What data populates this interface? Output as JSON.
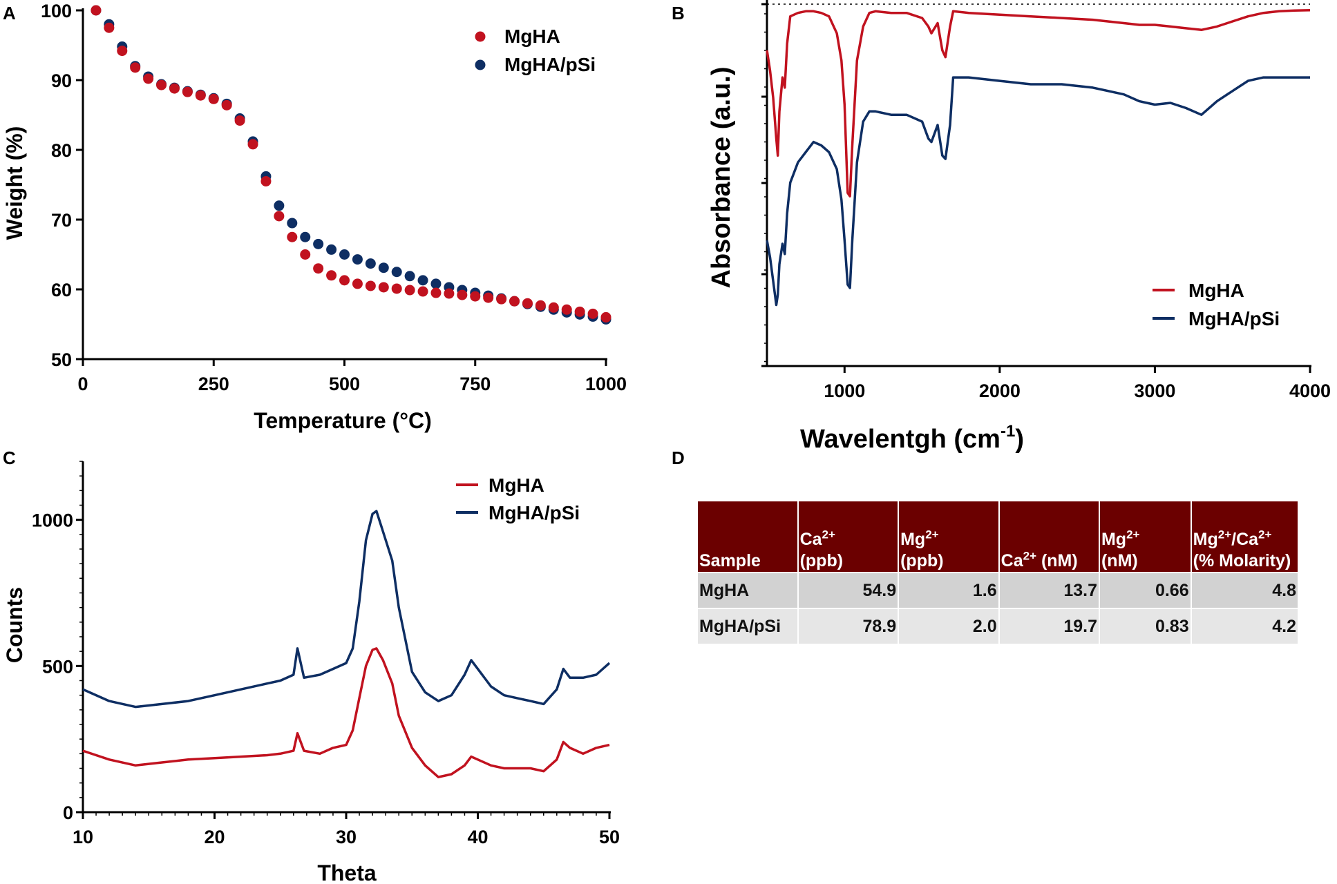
{
  "colors": {
    "mgha": "#c1121f",
    "mgha_psi": "#0e2e63",
    "axis": "#000000",
    "table_header": "#6b0000"
  },
  "chart_data": [
    {
      "panel": "A",
      "type": "scatter",
      "xlabel": "Temperature (°C)",
      "ylabel": "Weight (%)",
      "xlim": [
        0,
        1000
      ],
      "ylim": [
        50,
        100
      ],
      "xticks": [
        0,
        250,
        500,
        750,
        1000
      ],
      "yticks": [
        50,
        60,
        70,
        80,
        90,
        100
      ],
      "legend_position": "top-right",
      "series": [
        {
          "name": "MgHA",
          "color": "#c1121f",
          "x": [
            25,
            50,
            75,
            100,
            125,
            150,
            175,
            200,
            225,
            250,
            275,
            300,
            325,
            350,
            375,
            400,
            425,
            450,
            475,
            500,
            525,
            550,
            575,
            600,
            625,
            650,
            675,
            700,
            725,
            750,
            775,
            800,
            825,
            850,
            875,
            900,
            925,
            950,
            975,
            1000
          ],
          "y": [
            100,
            97.5,
            94.2,
            91.8,
            90.2,
            89.3,
            88.8,
            88.3,
            87.8,
            87.3,
            86.4,
            84.2,
            80.8,
            75.5,
            70.5,
            67.5,
            65.0,
            63.0,
            62.0,
            61.3,
            60.8,
            60.5,
            60.3,
            60.1,
            59.9,
            59.7,
            59.5,
            59.4,
            59.2,
            59.0,
            58.8,
            58.6,
            58.3,
            58.0,
            57.7,
            57.4,
            57.1,
            56.8,
            56.5,
            56.0
          ]
        },
        {
          "name": "MgHA/pSi",
          "color": "#0e2e63",
          "x": [
            25,
            50,
            75,
            100,
            125,
            150,
            175,
            200,
            225,
            250,
            275,
            300,
            325,
            350,
            375,
            400,
            425,
            450,
            475,
            500,
            525,
            550,
            575,
            600,
            625,
            650,
            675,
            700,
            725,
            750,
            775,
            800,
            825,
            850,
            875,
            900,
            925,
            950,
            975,
            1000
          ],
          "y": [
            100,
            98.0,
            94.8,
            92.0,
            90.5,
            89.4,
            88.9,
            88.4,
            87.9,
            87.4,
            86.6,
            84.5,
            81.2,
            76.2,
            72.0,
            69.5,
            67.5,
            66.5,
            65.7,
            65.0,
            64.3,
            63.7,
            63.1,
            62.5,
            61.9,
            61.3,
            60.8,
            60.3,
            59.9,
            59.5,
            59.1,
            58.7,
            58.3,
            57.9,
            57.5,
            57.1,
            56.7,
            56.4,
            56.1,
            55.7
          ]
        }
      ]
    },
    {
      "panel": "B",
      "type": "line",
      "xlabel": "Wavelentgh (cm",
      "xlabel_superscript": "-1",
      "xlabel_suffix": ")",
      "ylabel": "Absorbance (a.u.)",
      "xlim": [
        500,
        4000
      ],
      "ylim": [
        -1.05,
        0.02
      ],
      "xticks": [
        1000,
        2000,
        3000,
        4000
      ],
      "legend_position": "bottom-right",
      "series": [
        {
          "name": "MgHA",
          "color": "#c1121f",
          "x": [
            500,
            520,
            540,
            560,
            570,
            580,
            600,
            615,
            630,
            650,
            700,
            750,
            800,
            850,
            900,
            950,
            980,
            1000,
            1020,
            1035,
            1050,
            1080,
            1120,
            1160,
            1200,
            1300,
            1400,
            1500,
            1540,
            1560,
            1600,
            1630,
            1650,
            1680,
            1700,
            1800,
            2000,
            2200,
            2400,
            2600,
            2800,
            2900,
            3000,
            3100,
            3200,
            3300,
            3400,
            3500,
            3600,
            3700,
            3800,
            3900,
            4000
          ],
          "x_note": "cm-1",
          "y": [
            -0.12,
            -0.18,
            -0.26,
            -0.38,
            -0.43,
            -0.3,
            -0.2,
            -0.23,
            -0.1,
            -0.02,
            -0.01,
            -0.005,
            -0.005,
            -0.01,
            -0.02,
            -0.07,
            -0.15,
            -0.28,
            -0.54,
            -0.55,
            -0.4,
            -0.15,
            -0.05,
            -0.01,
            -0.005,
            -0.01,
            -0.01,
            -0.025,
            -0.05,
            -0.07,
            -0.04,
            -0.12,
            -0.14,
            -0.05,
            -0.005,
            -0.01,
            -0.015,
            -0.02,
            -0.025,
            -0.03,
            -0.04,
            -0.045,
            -0.045,
            -0.05,
            -0.055,
            -0.06,
            -0.05,
            -0.035,
            -0.02,
            -0.01,
            -0.005,
            -0.003,
            -0.002
          ]
        },
        {
          "name": "MgHA/pSi",
          "color": "#0e2e63",
          "x": [
            500,
            520,
            540,
            560,
            570,
            580,
            600,
            615,
            630,
            650,
            700,
            750,
            800,
            850,
            900,
            950,
            980,
            1000,
            1020,
            1035,
            1050,
            1080,
            1120,
            1160,
            1200,
            1300,
            1400,
            1500,
            1540,
            1560,
            1600,
            1630,
            1650,
            1680,
            1700,
            1800,
            2000,
            2200,
            2400,
            2600,
            2800,
            2900,
            3000,
            3100,
            3200,
            3300,
            3400,
            3500,
            3600,
            3700,
            3800,
            3900,
            4000
          ],
          "y": [
            -0.68,
            -0.73,
            -0.8,
            -0.87,
            -0.84,
            -0.75,
            -0.69,
            -0.72,
            -0.6,
            -0.51,
            -0.45,
            -0.42,
            -0.39,
            -0.4,
            -0.42,
            -0.47,
            -0.56,
            -0.68,
            -0.81,
            -0.82,
            -0.68,
            -0.45,
            -0.33,
            -0.3,
            -0.3,
            -0.31,
            -0.31,
            -0.33,
            -0.38,
            -0.39,
            -0.34,
            -0.43,
            -0.44,
            -0.34,
            -0.2,
            -0.2,
            -0.21,
            -0.22,
            -0.22,
            -0.23,
            -0.25,
            -0.27,
            -0.28,
            -0.275,
            -0.29,
            -0.31,
            -0.27,
            -0.24,
            -0.21,
            -0.2,
            -0.2,
            -0.2,
            -0.2
          ]
        }
      ]
    },
    {
      "panel": "C",
      "type": "line",
      "xlabel": "Theta",
      "ylabel": "Counts",
      "xlim": [
        10,
        50
      ],
      "ylim": [
        0,
        1200
      ],
      "xticks": [
        10,
        20,
        30,
        40,
        50
      ],
      "yticks": [
        0,
        500,
        1000
      ],
      "legend_position": "top-right",
      "series": [
        {
          "name": "MgHA",
          "color": "#c1121f",
          "x": [
            10,
            12,
            14,
            16,
            18,
            20,
            22,
            24,
            25,
            26,
            26.3,
            26.8,
            28,
            29,
            30,
            30.5,
            31,
            31.5,
            32,
            32.3,
            32.8,
            33.5,
            34,
            35,
            36,
            37,
            38,
            39,
            39.5,
            40,
            41,
            42,
            43,
            44,
            45,
            46,
            46.5,
            47,
            48,
            49,
            50
          ],
          "y": [
            210,
            180,
            160,
            170,
            180,
            185,
            190,
            195,
            200,
            210,
            270,
            210,
            200,
            220,
            230,
            280,
            390,
            500,
            555,
            560,
            520,
            440,
            330,
            220,
            160,
            120,
            130,
            160,
            190,
            180,
            160,
            150,
            150,
            150,
            140,
            180,
            240,
            220,
            200,
            220,
            230
          ]
        },
        {
          "name": "MgHA/pSi",
          "color": "#0e2e63",
          "x": [
            10,
            12,
            14,
            16,
            18,
            20,
            22,
            24,
            25,
            26,
            26.3,
            26.8,
            28,
            29,
            30,
            30.5,
            31,
            31.5,
            32,
            32.3,
            32.8,
            33.5,
            34,
            35,
            36,
            37,
            38,
            39,
            39.5,
            40,
            41,
            42,
            43,
            44,
            45,
            46,
            46.5,
            47,
            48,
            49,
            50
          ],
          "y": [
            420,
            380,
            360,
            370,
            380,
            400,
            420,
            440,
            450,
            470,
            560,
            460,
            470,
            490,
            510,
            560,
            720,
            930,
            1020,
            1030,
            960,
            860,
            700,
            480,
            410,
            380,
            400,
            470,
            520,
            490,
            430,
            400,
            390,
            380,
            370,
            420,
            490,
            460,
            460,
            470,
            510
          ]
        }
      ]
    }
  ],
  "panels": {
    "a": "A",
    "b": "B",
    "c": "C",
    "d": "D"
  },
  "table": {
    "headers": [
      {
        "main": "Sample",
        "sup": "",
        "rest": ""
      },
      {
        "main": "Ca",
        "sup": "2+",
        "rest": "(ppb)"
      },
      {
        "main": "Mg",
        "sup": "2+",
        "rest": "(ppb)"
      },
      {
        "main": "Ca",
        "sup": "2+",
        "rest": " (nM)"
      },
      {
        "main": "Mg",
        "sup": "2+",
        "rest": "(nM)"
      },
      {
        "main": "Mg",
        "sup": "2+",
        "mid": "/Ca",
        "sup2": "2+",
        "rest": "(% Molarity)"
      }
    ],
    "rows": [
      [
        "MgHA",
        "54.9",
        "1.6",
        "13.7",
        "0.66",
        "4.8"
      ],
      [
        "MgHA/pSi",
        "78.9",
        "2.0",
        "19.7",
        "0.83",
        "4.2"
      ]
    ]
  }
}
